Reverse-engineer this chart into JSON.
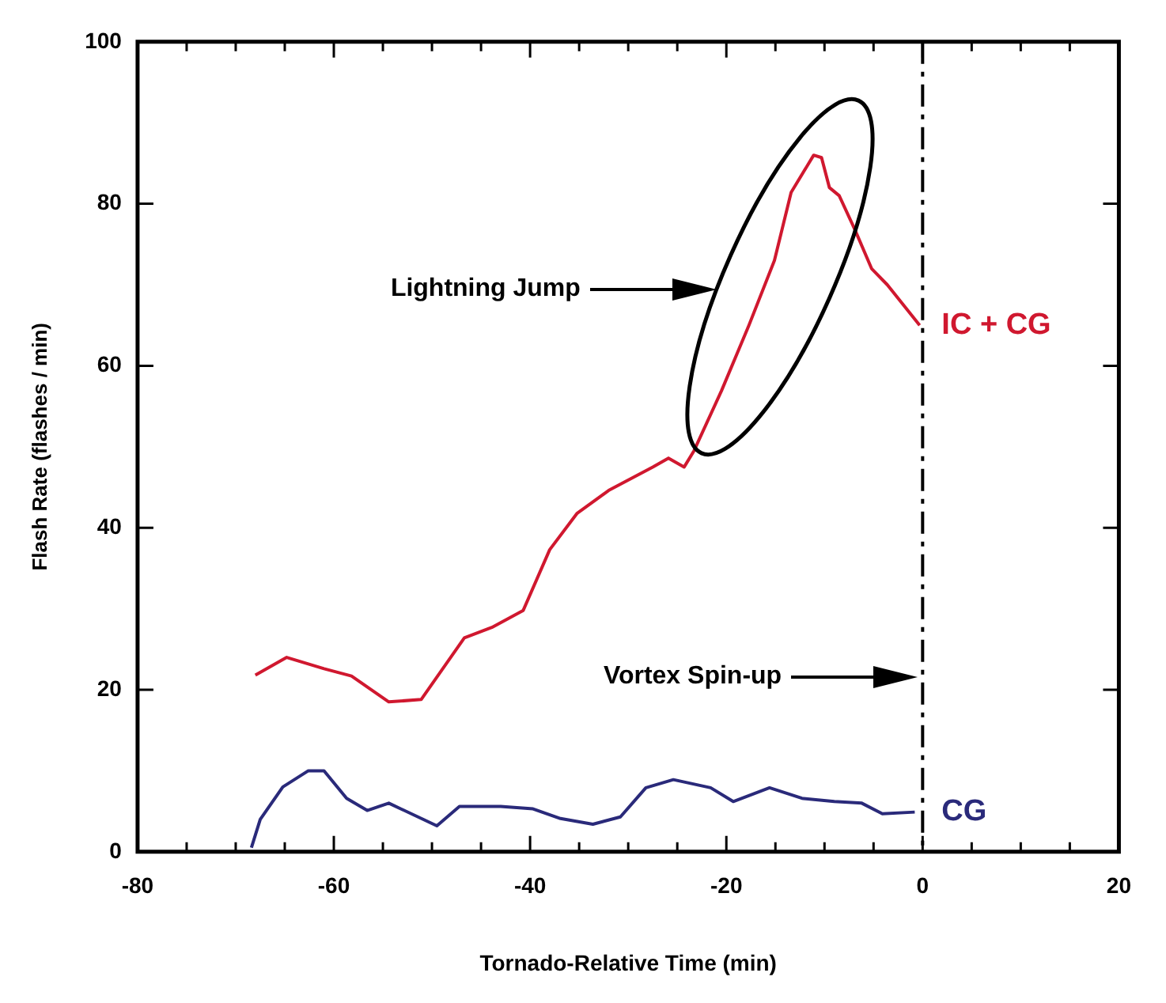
{
  "chart_data": {
    "type": "line",
    "xlabel": "Tornado-Relative Time (min)",
    "ylabel": "Flash Rate (flashes / min)",
    "xlim": [
      -80,
      20
    ],
    "ylim": [
      0,
      100
    ],
    "xticks": [
      -80,
      {
        "value": -75,
        "label": null
      },
      {
        "value": -70,
        "label": null
      },
      {
        "value": -65,
        "label": null
      },
      -60,
      {
        "value": -55,
        "label": null
      },
      {
        "value": -50,
        "label": null
      },
      {
        "value": -45,
        "label": null
      },
      -40,
      {
        "value": -35,
        "label": null
      },
      {
        "value": -30,
        "label": null
      },
      {
        "value": -25,
        "label": null
      },
      -20,
      {
        "value": -15,
        "label": null
      },
      {
        "value": -10,
        "label": null
      },
      {
        "value": -5,
        "label": null
      },
      0,
      {
        "value": 5,
        "label": null
      },
      {
        "value": 10,
        "label": null
      },
      {
        "value": 15,
        "label": null
      },
      20
    ],
    "yticks": [
      0,
      20,
      40,
      60,
      80,
      100
    ],
    "grid": false,
    "legend": false,
    "marker": "none",
    "line_style": "solid",
    "series": [
      {
        "name": "IC + CG",
        "color": "#d0182f",
        "x": [
          -68,
          -64.8,
          -61,
          -58.2,
          -54.4,
          -51.1,
          -46.7,
          -43.9,
          -40.7,
          -38,
          -35.2,
          -32,
          -27.5,
          -25.9,
          -24.3,
          -23.3,
          -20.5,
          -17.7,
          -15.1,
          -13.4,
          -11.1,
          -10.3,
          -9.5,
          -8.5,
          -6.9,
          -5.2,
          -3.6,
          -0.3
        ],
        "values": [
          21.8,
          24,
          22.6,
          21.7,
          18.5,
          18.8,
          26.4,
          27.7,
          29.8,
          37.3,
          41.8,
          44.6,
          47.5,
          48.6,
          47.5,
          49.5,
          56.9,
          65,
          73,
          81.4,
          86,
          85.7,
          82,
          81,
          76.8,
          72,
          70,
          65
        ]
      },
      {
        "name": "CG",
        "color": "#2a2a7a",
        "x": [
          -68.4,
          -67.5,
          -65.2,
          -62.6,
          -61,
          -58.7,
          -56.6,
          -54.4,
          -49.5,
          -47.2,
          -43,
          -39.7,
          -36.9,
          -33.6,
          -30.8,
          -28.2,
          -25.4,
          -21.6,
          -19.3,
          -15.6,
          -12.3,
          -9,
          -6.2,
          -4.1,
          -0.8
        ],
        "values": [
          0.5,
          4,
          8,
          10,
          10,
          6.6,
          5.1,
          6,
          3.2,
          5.6,
          5.6,
          5.3,
          4.1,
          3.4,
          4.3,
          7.9,
          8.9,
          7.9,
          6.2,
          7.9,
          6.6,
          6.2,
          6,
          4.7,
          4.9
        ]
      }
    ],
    "ref_lines": [
      {
        "axis": "x",
        "value": 0,
        "line_style": "dashed",
        "color": "#000000"
      }
    ],
    "annotations": [
      "Lightning Jump",
      "Vortex Spin-up"
    ]
  }
}
